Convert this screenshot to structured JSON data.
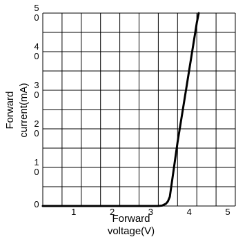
{
  "chart_data": {
    "type": "line",
    "xlabel": "Forward voltage(V)",
    "xlabel_lines": [
      "Forward",
      "voltage(V)"
    ],
    "ylabel": "Forward current(mA)",
    "ylabel_lines": [
      "Forward",
      "current(mA)"
    ],
    "xlim": [
      0,
      5
    ],
    "ylim": [
      0,
      50
    ],
    "grid": true,
    "x_ticks": [
      {
        "value": 1,
        "label": "1"
      },
      {
        "value": 2,
        "label": "2"
      },
      {
        "value": 3,
        "label": "3"
      },
      {
        "value": 4,
        "label": "4"
      },
      {
        "value": 5,
        "label": "5"
      }
    ],
    "y_ticks": [
      {
        "value": 0,
        "label": "0"
      },
      {
        "value": 10,
        "label": "1\n0"
      },
      {
        "value": 20,
        "label": "2\n0"
      },
      {
        "value": 30,
        "label": "3\n0"
      },
      {
        "value": 40,
        "label": "4\n0"
      },
      {
        "value": 50,
        "label": "5\n0"
      }
    ],
    "series": [
      {
        "color": "#000000",
        "points": [
          [
            0,
            0
          ],
          [
            1,
            0
          ],
          [
            2,
            0
          ],
          [
            3,
            0
          ],
          [
            3.1,
            0.1
          ],
          [
            3.2,
            0.6
          ],
          [
            3.25,
            1.2
          ],
          [
            3.3,
            2.4
          ],
          [
            3.5,
            16.5
          ],
          [
            3.75,
            32
          ],
          [
            4.0,
            47.5
          ],
          [
            4.05,
            50
          ]
        ]
      }
    ]
  }
}
